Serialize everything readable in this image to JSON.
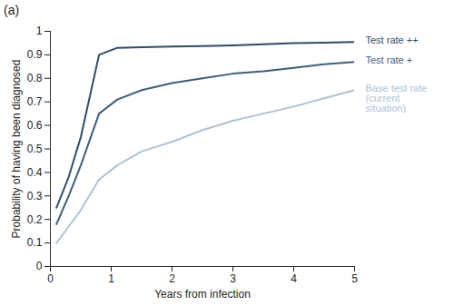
{
  "chart_data": {
    "type": "line",
    "title": "(a)",
    "x_label": "Years from infection",
    "y_label": "Probability of having been diagnosed",
    "x": [
      0.1,
      0.3,
      0.5,
      0.8,
      1.1,
      1.5,
      2,
      2.5,
      3,
      3.5,
      4,
      4.5,
      5
    ],
    "series": [
      {
        "name": "Test rate ++",
        "color": "#2f4b68",
        "values": [
          0.25,
          0.38,
          0.55,
          0.9,
          0.93,
          0.932,
          0.935,
          0.937,
          0.94,
          0.945,
          0.95,
          0.952,
          0.955
        ]
      },
      {
        "name": "Test rate +",
        "color": "#3e5e80",
        "values": [
          0.18,
          0.3,
          0.43,
          0.65,
          0.71,
          0.75,
          0.78,
          0.8,
          0.82,
          0.83,
          0.845,
          0.86,
          0.87
        ]
      },
      {
        "name": "Base test rate (current situation)",
        "color": "#aec3d6",
        "values": [
          0.1,
          0.17,
          0.24,
          0.37,
          0.43,
          0.49,
          0.53,
          0.58,
          0.62,
          0.65,
          0.68,
          0.715,
          0.75
        ]
      }
    ],
    "xlim": [
      0,
      5
    ],
    "xticks": [
      0,
      1,
      2,
      3,
      4,
      5
    ],
    "ylim": [
      0,
      1
    ],
    "yticks": [
      0,
      0.1,
      0.2,
      0.3,
      0.4,
      0.5,
      0.6,
      0.7,
      0.8,
      0.9,
      1
    ],
    "grid": false,
    "legend": "right"
  }
}
